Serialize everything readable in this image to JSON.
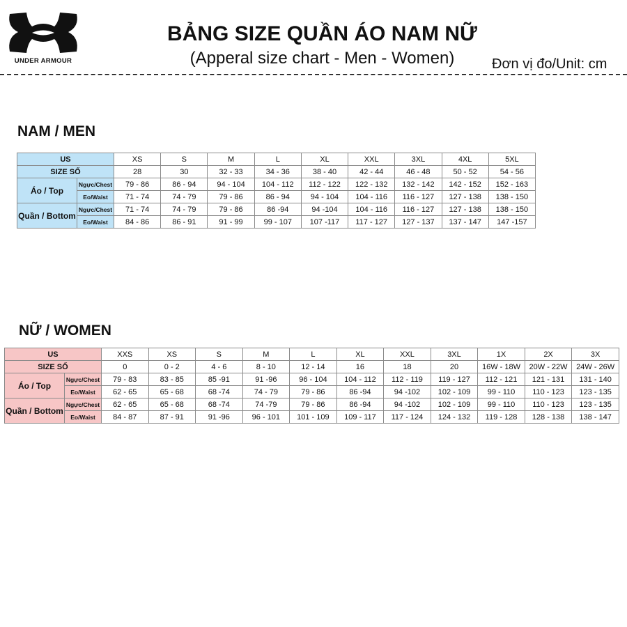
{
  "header": {
    "logo_text": "UNDER ARMOUR",
    "title": "BẢNG SIZE QUẦN ÁO NAM NỮ",
    "subtitle": "(Apperal size chart - Men - Women)",
    "unit": "Đơn vị đo/Unit: cm"
  },
  "colors": {
    "men_label_bg": "#bfe3f7",
    "women_label_bg": "#f7c6c6"
  },
  "men": {
    "heading": "NAM / MEN",
    "us_label": "US",
    "size_label": "SIZE SỐ",
    "top_label": "Áo / Top",
    "bottom_label": "Quần / Bottom",
    "chest_label": "Ngực/Chest",
    "waist_label": "Eo/Waist",
    "us": [
      "XS",
      "S",
      "M",
      "L",
      "XL",
      "XXL",
      "3XL",
      "4XL",
      "5XL"
    ],
    "size": [
      "28",
      "30",
      "32 - 33",
      "34 - 36",
      "38 - 40",
      "42 - 44",
      "46 - 48",
      "50 - 52",
      "54 - 56"
    ],
    "top_chest": [
      "79 - 86",
      "86 - 94",
      "94 - 104",
      "104 - 112",
      "112 - 122",
      "122 - 132",
      "132 - 142",
      "142 - 152",
      "152 - 163"
    ],
    "top_waist": [
      "71 - 74",
      "74 - 79",
      "79 - 86",
      "86 - 94",
      "94 - 104",
      "104 - 116",
      "116 - 127",
      "127 - 138",
      "138 - 150"
    ],
    "bottom_chest": [
      "71 - 74",
      "74 - 79",
      "79 - 86",
      "86 -94",
      "94 -104",
      "104 - 116",
      "116 - 127",
      "127 - 138",
      "138 - 150"
    ],
    "bottom_waist": [
      "84 - 86",
      "86 - 91",
      "91 - 99",
      "99 - 107",
      "107 -117",
      "117 - 127",
      "127 - 137",
      "137 - 147",
      "147 -157"
    ]
  },
  "women": {
    "heading": "NỮ / WOMEN",
    "us_label": "US",
    "size_label": "SIZE SỐ",
    "top_label": "Áo / Top",
    "bottom_label": "Quần / Bottom",
    "chest_label": "Ngực/Chest",
    "waist_label": "Eo/Waist",
    "us": [
      "XXS",
      "XS",
      "S",
      "M",
      "L",
      "XL",
      "XXL",
      "3XL",
      "1X",
      "2X",
      "3X"
    ],
    "size": [
      "0",
      "0 - 2",
      "4 - 6",
      "8 - 10",
      "12 - 14",
      "16",
      "18",
      "20",
      "16W - 18W",
      "20W - 22W",
      "24W - 26W"
    ],
    "top_chest": [
      "79 - 83",
      "83 - 85",
      "85 -91",
      "91 -96",
      "96 - 104",
      "104 - 112",
      "112 - 119",
      "119 - 127",
      "112 - 121",
      "121 - 131",
      "131 - 140"
    ],
    "top_waist": [
      "62 - 65",
      "65 - 68",
      "68 -74",
      "74 - 79",
      "79 - 86",
      "86 -94",
      "94 -102",
      "102 - 109",
      "99 - 110",
      "110 - 123",
      "123 - 135"
    ],
    "bottom_chest": [
      "62 - 65",
      "65 - 68",
      "68 -74",
      "74 -79",
      "79 - 86",
      "86 -94",
      "94 -102",
      "102 - 109",
      "99 - 110",
      "110 - 123",
      "123 - 135"
    ],
    "bottom_waist": [
      "84 - 87",
      "87 - 91",
      "91 -96",
      "96 - 101",
      "101 - 109",
      "109 - 117",
      "117 - 124",
      "124 - 132",
      "119 - 128",
      "128 - 138",
      "138 - 147"
    ]
  }
}
